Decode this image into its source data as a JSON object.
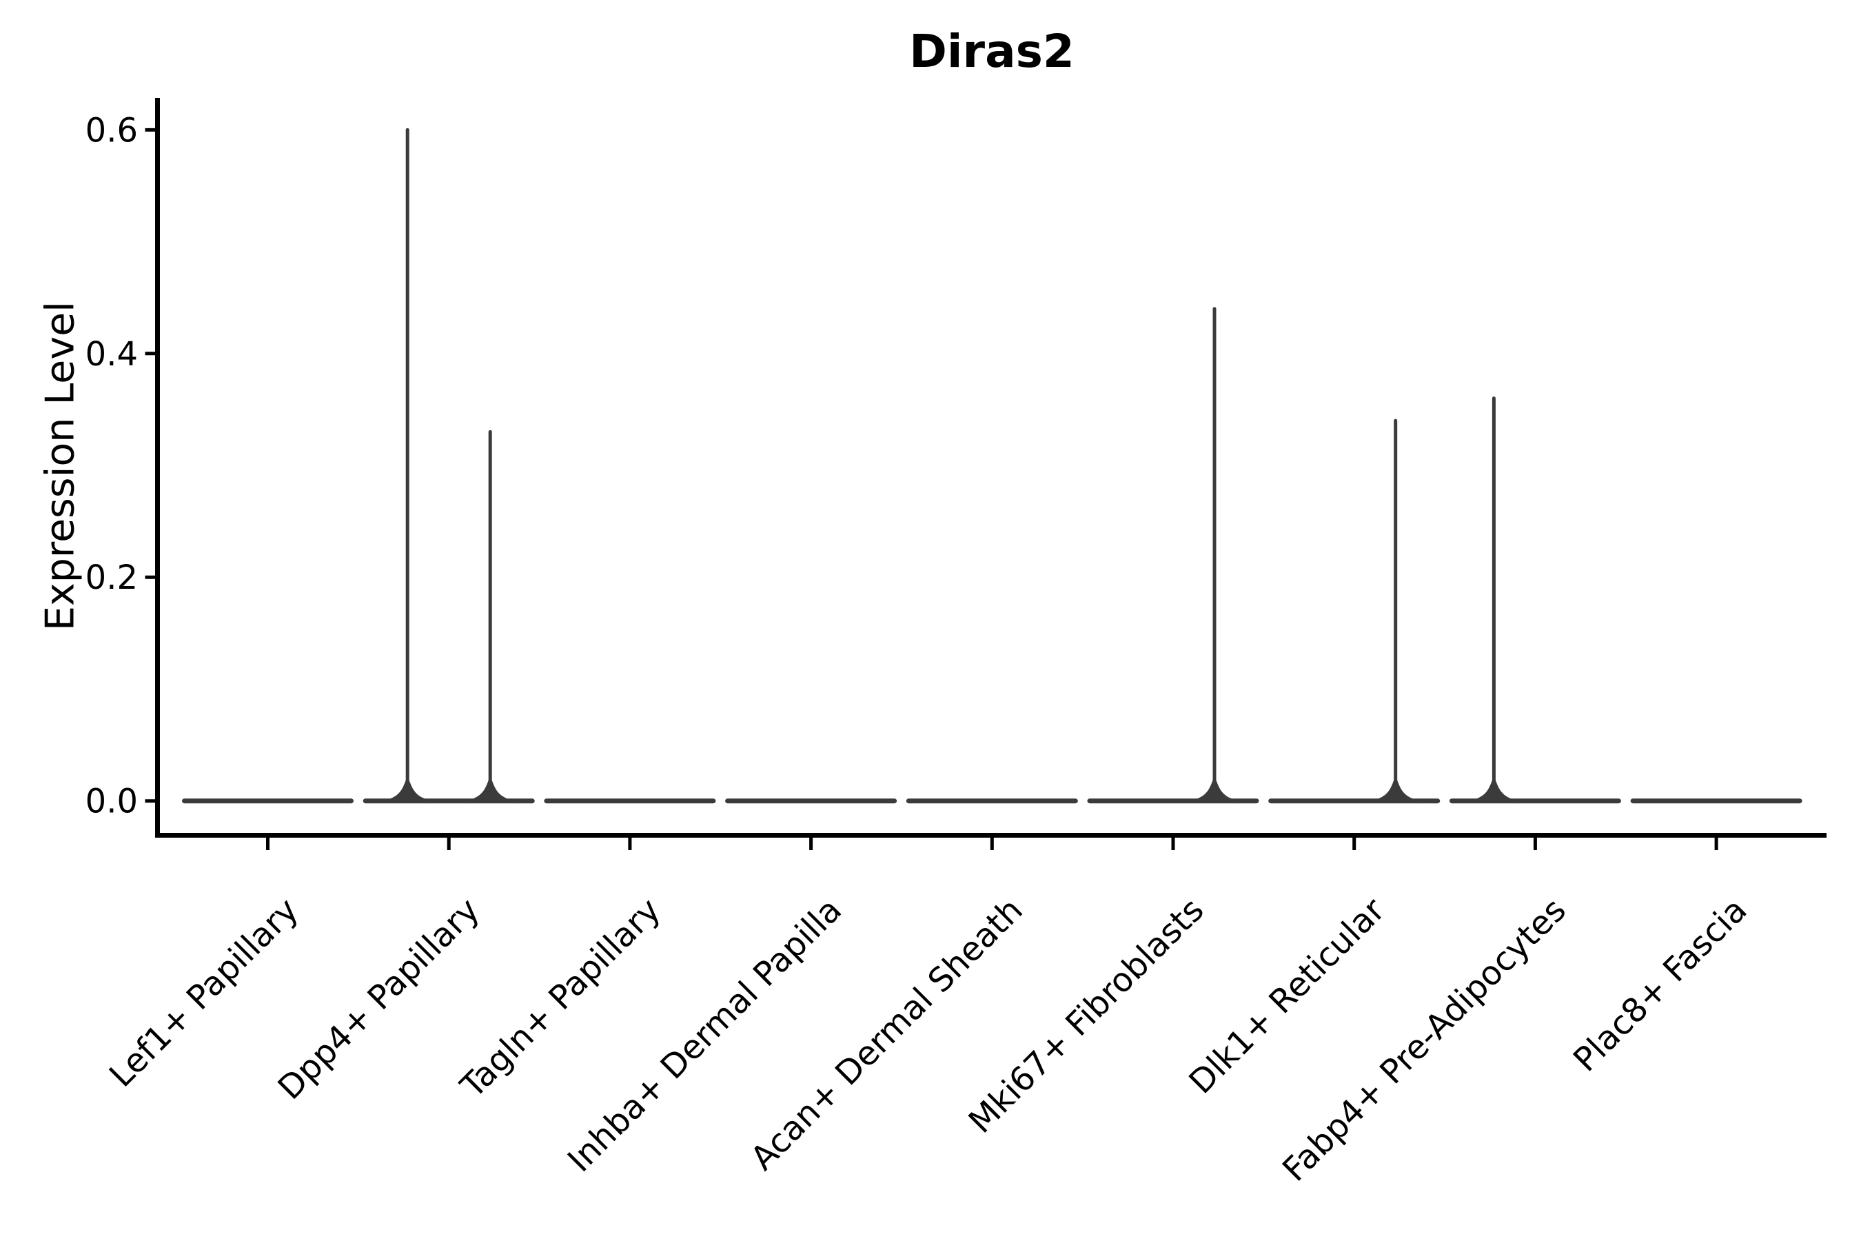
{
  "figure": {
    "background": "#ffffff"
  },
  "chart_data": {
    "type": "violin",
    "title": "Diras2",
    "xlabel": "",
    "ylabel": "Expression Level",
    "categories": [
      "Lef1+ Papillary",
      "Dpp4+ Papillary",
      "Tagln+ Papillary",
      "Inhba+ Dermal Papilla",
      "Acan+ Dermal Sheath",
      "Mki67+ Fibroblasts",
      "Dlk1+ Reticular",
      "Fabp4+ Pre-Adipocytes",
      "Plac8+ Fascia"
    ],
    "yticks": [
      0.0,
      0.2,
      0.4,
      0.6
    ],
    "ytick_labels": [
      "0.0",
      "0.2",
      "0.4",
      "0.6"
    ],
    "ylim": [
      -0.031,
      0.629
    ],
    "grid": false,
    "legend": null,
    "colors": {
      "violin": "#3b3b3b",
      "axis": "#000000",
      "text": "#000000"
    },
    "series": [
      {
        "label": "Lef1+ Papillary",
        "body_value": 0,
        "spikes": []
      },
      {
        "label": "Dpp4+ Papillary",
        "body_value": 0,
        "spikes": [
          {
            "side": "left",
            "value": 0.6
          },
          {
            "side": "right",
            "value": 0.33
          }
        ]
      },
      {
        "label": "Tagln+ Papillary",
        "body_value": 0,
        "spikes": []
      },
      {
        "label": "Inhba+ Dermal Papilla",
        "body_value": 0,
        "spikes": []
      },
      {
        "label": "Acan+ Dermal Sheath",
        "body_value": 0,
        "spikes": []
      },
      {
        "label": "Mki67+ Fibroblasts",
        "body_value": 0,
        "spikes": [
          {
            "side": "right",
            "value": 0.44
          }
        ]
      },
      {
        "label": "Dlk1+ Reticular",
        "body_value": 0,
        "spikes": [
          {
            "side": "right",
            "value": 0.34
          }
        ]
      },
      {
        "label": "Fabp4+ Pre-Adipocytes",
        "body_value": 0,
        "spikes": [
          {
            "side": "left",
            "value": 0.36
          }
        ]
      },
      {
        "label": "Plac8+ Fascia",
        "body_value": 0,
        "spikes": []
      }
    ],
    "note": "Expression is concentrated at 0 in every cluster (flat violin bodies); thin vertical spikes mark the maximum expression of rare positive cells in the left/right sub-violin of a category."
  }
}
